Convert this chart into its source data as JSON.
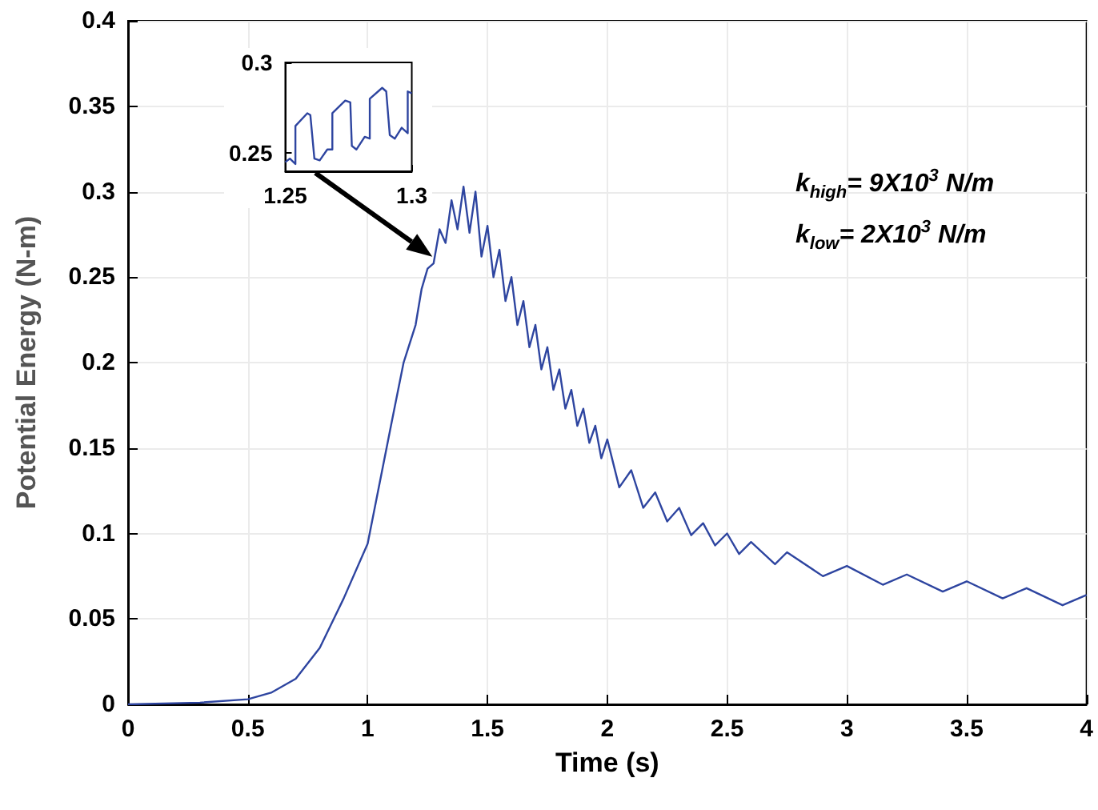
{
  "chart_data": [
    {
      "type": "line",
      "xlabel": "Time (s)",
      "ylabel": "Potential Energy (N-m)",
      "xlim": [
        0,
        4
      ],
      "ylim": [
        0,
        0.4
      ],
      "xticks": [
        0,
        0.5,
        1,
        1.5,
        2,
        2.5,
        3,
        3.5,
        4
      ],
      "yticks": [
        0,
        0.05,
        0.1,
        0.15,
        0.2,
        0.25,
        0.3,
        0.35,
        0.4
      ],
      "grid": true,
      "annotations": [
        "k$_{high}$= 9X10$^{3}$ N/m",
        "k$_{low}$= 2X10$^{3}$ N/m"
      ],
      "series": [
        {
          "color": "#2e45a0",
          "x": [
            0,
            0.3,
            0.5,
            0.6,
            0.7,
            0.8,
            0.9,
            1.0,
            1.1,
            1.15,
            1.2,
            1.225,
            1.25,
            1.275,
            1.3,
            1.325,
            1.35,
            1.375,
            1.4,
            1.425,
            1.45,
            1.475,
            1.5,
            1.525,
            1.55,
            1.575,
            1.6,
            1.625,
            1.65,
            1.675,
            1.7,
            1.725,
            1.75,
            1.775,
            1.8,
            1.825,
            1.85,
            1.875,
            1.9,
            1.925,
            1.95,
            1.975,
            2.0,
            2.05,
            2.1,
            2.15,
            2.2,
            2.25,
            2.3,
            2.35,
            2.4,
            2.45,
            2.5,
            2.55,
            2.6,
            2.7,
            2.75,
            2.9,
            3.0,
            3.15,
            3.25,
            3.4,
            3.5,
            3.65,
            3.75,
            3.9,
            4.0
          ],
          "values": [
            0,
            0.001,
            0.003,
            0.007,
            0.015,
            0.033,
            0.062,
            0.094,
            0.165,
            0.2,
            0.222,
            0.243,
            0.255,
            0.258,
            0.278,
            0.27,
            0.295,
            0.278,
            0.303,
            0.276,
            0.3,
            0.262,
            0.28,
            0.25,
            0.266,
            0.236,
            0.25,
            0.222,
            0.236,
            0.209,
            0.222,
            0.196,
            0.209,
            0.184,
            0.196,
            0.173,
            0.184,
            0.163,
            0.173,
            0.153,
            0.163,
            0.144,
            0.155,
            0.127,
            0.137,
            0.115,
            0.124,
            0.107,
            0.115,
            0.099,
            0.106,
            0.093,
            0.1,
            0.088,
            0.095,
            0.082,
            0.089,
            0.075,
            0.081,
            0.07,
            0.076,
            0.066,
            0.072,
            0.062,
            0.068,
            0.058,
            0.064
          ]
        }
      ]
    },
    {
      "type": "line",
      "xlim": [
        1.25,
        1.3
      ],
      "ylim": [
        0.24,
        0.3
      ],
      "xticks": [
        1.25,
        1.3
      ],
      "yticks": [
        0.25,
        0.3
      ],
      "grid": false,
      "series": [
        {
          "color": "#2e45a0",
          "x": [
            1.25,
            1.2518,
            1.254,
            1.254,
            1.2587,
            1.2599,
            1.2615,
            1.2636,
            1.2666,
            1.2686,
            1.2686,
            1.2737,
            1.2757,
            1.2763,
            1.2781,
            1.2814,
            1.2834,
            1.2834,
            1.2883,
            1.2899,
            1.2913,
            1.2933,
            1.296,
            1.2984,
            1.2984,
            1.3
          ],
          "values": [
            0.245,
            0.247,
            0.244,
            0.265,
            0.272,
            0.271,
            0.247,
            0.246,
            0.252,
            0.252,
            0.272,
            0.279,
            0.278,
            0.254,
            0.252,
            0.259,
            0.258,
            0.28,
            0.286,
            0.284,
            0.26,
            0.258,
            0.264,
            0.261,
            0.284,
            0.283
          ]
        }
      ]
    }
  ]
}
